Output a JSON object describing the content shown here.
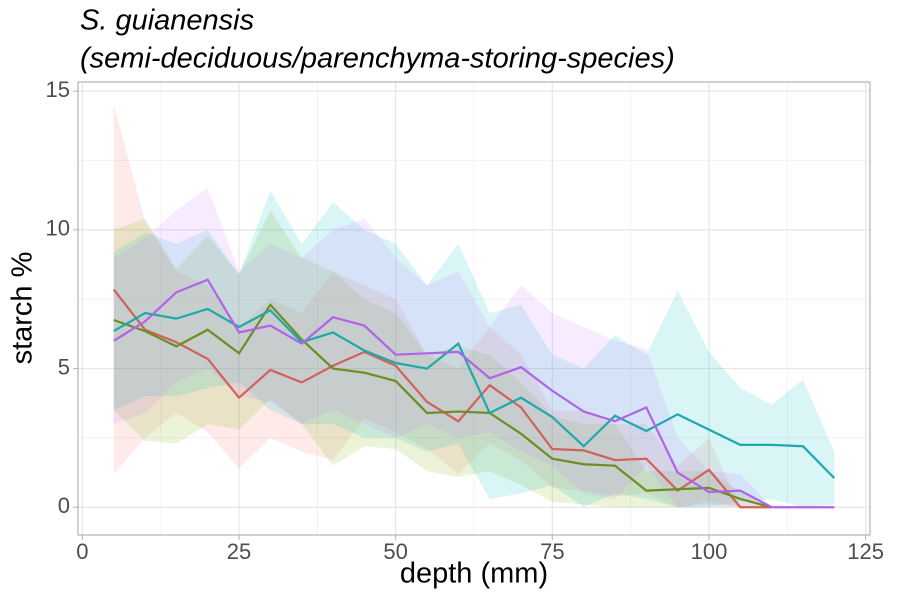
{
  "chart_data": {
    "type": "line",
    "title": "S. guianensis",
    "subtitle": "(semi-deciduous/parenchyma-storing-species)",
    "x_label": "depth (mm)",
    "y_label": "starch %",
    "x": [
      5,
      10,
      15,
      20,
      25,
      30,
      35,
      40,
      45,
      50,
      55,
      60,
      65,
      70,
      75,
      80,
      85,
      90,
      95,
      100,
      105,
      110,
      115,
      120
    ],
    "series": [
      {
        "color": "#d0625b",
        "fill": "#F8766D",
        "values": [
          7.85,
          6.4,
          5.95,
          5.35,
          3.95,
          4.95,
          4.5,
          5.1,
          5.6,
          5.1,
          3.8,
          3.1,
          4.4,
          3.6,
          2.1,
          2.05,
          1.7,
          1.75,
          0.6,
          1.35,
          0,
          0,
          null,
          null
        ],
        "upper": [
          14.5,
          10.3,
          8.5,
          8.0,
          6.5,
          7.5,
          7.0,
          8.5,
          8.0,
          7.5,
          5.5,
          5.0,
          6.5,
          5.5,
          3.5,
          3.5,
          3.0,
          3.0,
          1.5,
          2.5,
          0,
          0,
          null,
          null
        ],
        "lower": [
          1.2,
          2.5,
          3.4,
          2.7,
          1.4,
          2.5,
          2.0,
          1.7,
          3.2,
          2.7,
          2.1,
          1.2,
          2.3,
          1.7,
          0.7,
          0.6,
          0.4,
          0.5,
          0,
          0.2,
          0,
          0,
          null,
          null
        ]
      },
      {
        "color": "#6b8e23",
        "fill": "#7CAE00",
        "values": [
          6.75,
          6.35,
          5.8,
          6.4,
          5.55,
          7.3,
          6.05,
          5.0,
          4.85,
          4.55,
          3.4,
          3.45,
          3.4,
          2.65,
          1.75,
          1.55,
          1.5,
          0.6,
          0.65,
          0.7,
          0.3,
          0,
          null,
          null
        ],
        "upper": [
          10.0,
          10.4,
          8.6,
          9.8,
          8.4,
          10.7,
          9.0,
          8.5,
          7.5,
          7.0,
          5.5,
          5.8,
          5.5,
          4.5,
          3.3,
          3.0,
          3.0,
          1.3,
          1.3,
          1.3,
          0.6,
          0,
          null,
          null
        ],
        "lower": [
          3.5,
          2.4,
          2.3,
          3.0,
          2.8,
          3.9,
          3.0,
          1.5,
          2.2,
          2.1,
          1.3,
          1.1,
          1.3,
          0.8,
          0.2,
          0.1,
          0,
          0,
          0,
          0.1,
          0,
          0,
          null,
          null
        ]
      },
      {
        "color": "#1fa8ab",
        "fill": "#00BFC4",
        "values": [
          6.35,
          7.0,
          6.8,
          7.15,
          6.5,
          7.1,
          5.95,
          6.3,
          5.65,
          5.2,
          5.0,
          5.9,
          3.4,
          3.95,
          3.25,
          2.2,
          3.3,
          2.75,
          3.35,
          2.8,
          2.25,
          2.25,
          2.2,
          1.05
        ],
        "upper": [
          9.2,
          9.9,
          9.5,
          10.0,
          8.4,
          11.4,
          9.5,
          11.0,
          10.0,
          9.5,
          8.0,
          9.5,
          7.0,
          7.3,
          5.5,
          5.0,
          6.2,
          5.5,
          7.8,
          5.6,
          4.3,
          3.7,
          4.6,
          2.0
        ],
        "lower": [
          3.5,
          4.0,
          4.0,
          4.3,
          4.5,
          3.5,
          3.0,
          3.0,
          2.5,
          2.5,
          2.0,
          2.3,
          0.3,
          0.5,
          0.8,
          0,
          0.5,
          0.3,
          0,
          0,
          0.2,
          0.3,
          0,
          0.1
        ]
      },
      {
        "color": "#b062e8",
        "fill": "#C77CFF",
        "values": [
          6.0,
          6.7,
          7.75,
          8.2,
          6.3,
          6.55,
          5.9,
          6.85,
          6.55,
          5.5,
          5.55,
          5.6,
          4.65,
          5.05,
          4.2,
          3.45,
          3.1,
          3.6,
          1.25,
          0.55,
          0.6,
          0,
          0,
          0
        ],
        "upper": [
          9.0,
          9.7,
          10.7,
          11.5,
          8.5,
          9.5,
          9.0,
          10.0,
          10.4,
          9.0,
          8.0,
          8.5,
          6.5,
          8.0,
          7.0,
          6.5,
          6.0,
          5.7,
          2.5,
          1.3,
          1.2,
          0,
          0,
          0
        ],
        "lower": [
          3.0,
          3.4,
          4.5,
          5.0,
          4.0,
          3.8,
          3.0,
          3.5,
          3.0,
          2.5,
          3.0,
          2.5,
          2.7,
          2.0,
          1.5,
          0.5,
          0.3,
          1.5,
          0,
          0,
          0,
          0,
          0,
          0
        ]
      }
    ],
    "xlim": [
      -0.7,
      125.7
    ],
    "ylim": [
      -1.0,
      15.33
    ],
    "xticks": [
      0,
      25,
      50,
      75,
      100,
      125
    ],
    "yticks": [
      0,
      5,
      10,
      15
    ],
    "grid": true
  }
}
